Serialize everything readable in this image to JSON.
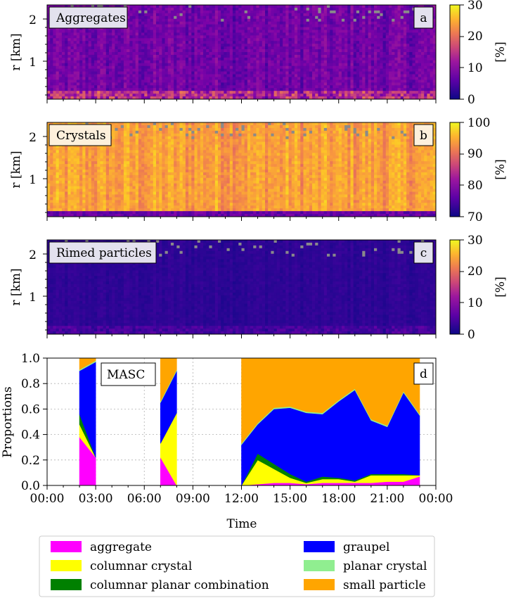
{
  "panels": [
    {
      "id": "a",
      "label": "Aggregates",
      "panel_letter": "a",
      "ylabel": "r [km]",
      "yticks": [
        "1",
        "2"
      ],
      "cbar_label": "[%]",
      "cbar_ticks": [
        "0",
        "10",
        "20",
        "30"
      ],
      "cbar_range": [
        0,
        30
      ],
      "cmap": "plasma"
    },
    {
      "id": "b",
      "label": "Crystals",
      "panel_letter": "b",
      "ylabel": "r [km]",
      "yticks": [
        "1",
        "2"
      ],
      "cbar_label": "[%]",
      "cbar_ticks": [
        "70",
        "80",
        "90",
        "100"
      ],
      "cbar_range": [
        70,
        100
      ],
      "cmap": "plasma"
    },
    {
      "id": "c",
      "label": "Rimed particles",
      "panel_letter": "c",
      "ylabel": "r [km]",
      "yticks": [
        "1",
        "2"
      ],
      "cbar_label": "[%]",
      "cbar_ticks": [
        "0",
        "10",
        "20",
        "30"
      ],
      "cbar_range": [
        0,
        30
      ],
      "cmap": "plasma"
    }
  ],
  "masc_panel": {
    "label": "MASC",
    "panel_letter": "d",
    "ylabel": "Proportions",
    "yticks": [
      "0.0",
      "0.2",
      "0.4",
      "0.6",
      "0.8",
      "1.0"
    ],
    "xlabel": "Time",
    "xticks": [
      "00:00",
      "03:00",
      "06:00",
      "09:00",
      "12:00",
      "15:00",
      "18:00",
      "21:00",
      "00:00"
    ]
  },
  "legend": [
    {
      "name": "aggregate",
      "color": "#ff00ff"
    },
    {
      "name": "columnar crystal",
      "color": "#ffff00"
    },
    {
      "name": "columnar planar combination",
      "color": "#008000"
    },
    {
      "name": "graupel",
      "color": "#0000ff"
    },
    {
      "name": "planar crystal",
      "color": "#90ee90"
    },
    {
      "name": "small particle",
      "color": "#ffa500"
    }
  ],
  "chart_data": [
    {
      "type": "heatmap",
      "title": "",
      "xlabel": "",
      "ylabel": "r [km]",
      "ylim": [
        0.1,
        2.3
      ],
      "value_range": [
        0,
        30
      ],
      "description": "Aggregates fraction vs time and range; mostly 0-10%, up to ~20% near ground"
    },
    {
      "type": "heatmap",
      "title": "",
      "xlabel": "",
      "ylabel": "r [km]",
      "ylim": [
        0.1,
        2.3
      ],
      "value_range": [
        70,
        100
      ],
      "description": "Crystals fraction; mostly 85-97%"
    },
    {
      "type": "heatmap",
      "title": "",
      "xlabel": "",
      "ylabel": "r [km]",
      "ylim": [
        0.1,
        2.3
      ],
      "value_range": [
        0,
        30
      ],
      "description": "Rimed particles fraction; mostly 0-5%"
    },
    {
      "type": "area",
      "title": "",
      "xlabel": "Time",
      "ylabel": "Proportions",
      "ylim": [
        0,
        1
      ],
      "xlim_hours": [
        0,
        24
      ],
      "segments": [
        {
          "x": [
            2,
            3
          ],
          "series": [
            {
              "name": "aggregate",
              "values": [
                0.38,
                0.22
              ]
            },
            {
              "name": "columnar crystal",
              "values": [
                0.1,
                0.0
              ]
            },
            {
              "name": "columnar planar combination",
              "values": [
                0.08,
                0.0
              ]
            },
            {
              "name": "graupel",
              "values": [
                0.34,
                0.75
              ]
            },
            {
              "name": "planar crystal",
              "values": [
                0.01,
                0.01
              ]
            },
            {
              "name": "small particle",
              "values": [
                0.09,
                0.02
              ]
            }
          ]
        },
        {
          "x": [
            7,
            8
          ],
          "series": [
            {
              "name": "aggregate",
              "values": [
                0.22,
                0.0
              ]
            },
            {
              "name": "columnar crystal",
              "values": [
                0.11,
                0.57
              ]
            },
            {
              "name": "columnar planar combination",
              "values": [
                0.0,
                0.0
              ]
            },
            {
              "name": "graupel",
              "values": [
                0.32,
                0.33
              ]
            },
            {
              "name": "planar crystal",
              "values": [
                0.01,
                0.01
              ]
            },
            {
              "name": "small particle",
              "values": [
                0.34,
                0.09
              ]
            }
          ]
        },
        {
          "x": [
            12,
            13,
            14,
            15,
            16,
            17,
            18,
            19,
            20,
            21,
            22,
            23
          ],
          "series": [
            {
              "name": "aggregate",
              "values": [
                0.0,
                0.01,
                0.02,
                0.02,
                0.01,
                0.02,
                0.02,
                0.02,
                0.02,
                0.03,
                0.03,
                0.07
              ]
            },
            {
              "name": "columnar crystal",
              "values": [
                0.0,
                0.19,
                0.11,
                0.04,
                0.01,
                0.03,
                0.03,
                0.01,
                0.06,
                0.05,
                0.05,
                0.01
              ]
            },
            {
              "name": "columnar planar combination",
              "values": [
                0.0,
                0.05,
                0.04,
                0.03,
                0.01,
                0.02,
                0.01,
                0.01,
                0.01,
                0.01,
                0.01,
                0.0
              ]
            },
            {
              "name": "graupel",
              "values": [
                0.32,
                0.23,
                0.43,
                0.52,
                0.54,
                0.49,
                0.6,
                0.71,
                0.42,
                0.37,
                0.64,
                0.47
              ]
            },
            {
              "name": "planar crystal",
              "values": [
                0.01,
                0.01,
                0.01,
                0.01,
                0.01,
                0.01,
                0.01,
                0.01,
                0.01,
                0.01,
                0.01,
                0.01
              ]
            },
            {
              "name": "small particle",
              "values": [
                0.67,
                0.51,
                0.39,
                0.38,
                0.42,
                0.43,
                0.33,
                0.24,
                0.48,
                0.53,
                0.26,
                0.44
              ]
            }
          ]
        }
      ]
    }
  ]
}
